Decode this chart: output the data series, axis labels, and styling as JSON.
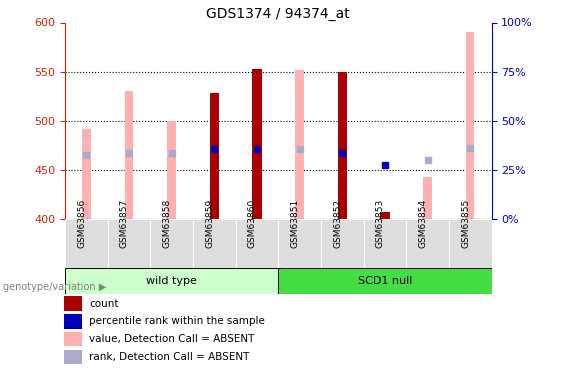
{
  "title": "GDS1374 / 94374_at",
  "samples": [
    "GSM63856",
    "GSM63857",
    "GSM63858",
    "GSM63859",
    "GSM63860",
    "GSM63851",
    "GSM63852",
    "GSM63853",
    "GSM63854",
    "GSM63855"
  ],
  "ylim_left": [
    400,
    600
  ],
  "ylim_right": [
    0,
    100
  ],
  "yticks_left": [
    400,
    450,
    500,
    550,
    600
  ],
  "yticks_right": [
    0,
    25,
    50,
    75,
    100
  ],
  "pink_values": [
    492,
    530,
    500,
    528,
    553,
    552,
    550,
    null,
    443,
    590
  ],
  "red_values": [
    null,
    null,
    null,
    528,
    553,
    null,
    550,
    408,
    null,
    null
  ],
  "blue_dark_values": [
    null,
    null,
    null,
    471,
    471,
    null,
    467,
    455,
    null,
    null
  ],
  "blue_light_values": [
    465,
    467,
    467,
    null,
    null,
    471,
    null,
    null,
    460,
    473
  ],
  "pink_color": "#FFB0B0",
  "red_color": "#AA0000",
  "blue_dark_color": "#0000BB",
  "blue_light_color": "#AAAACC",
  "wt_color": "#CCFFCC",
  "scd1_color": "#44DD44",
  "wild_type_label": "wild type",
  "scd1_label": "SCD1 null",
  "genotype_label": "genotype/variation",
  "legend_items": [
    {
      "color": "#AA0000",
      "label": "count"
    },
    {
      "color": "#0000BB",
      "label": "percentile rank within the sample"
    },
    {
      "color": "#FFB0B0",
      "label": "value, Detection Call = ABSENT"
    },
    {
      "color": "#AAAACC",
      "label": "rank, Detection Call = ABSENT"
    }
  ],
  "left_axis_color": "#CC2200",
  "right_axis_color": "#0000CC",
  "wt_count": 5,
  "scd1_count": 5
}
